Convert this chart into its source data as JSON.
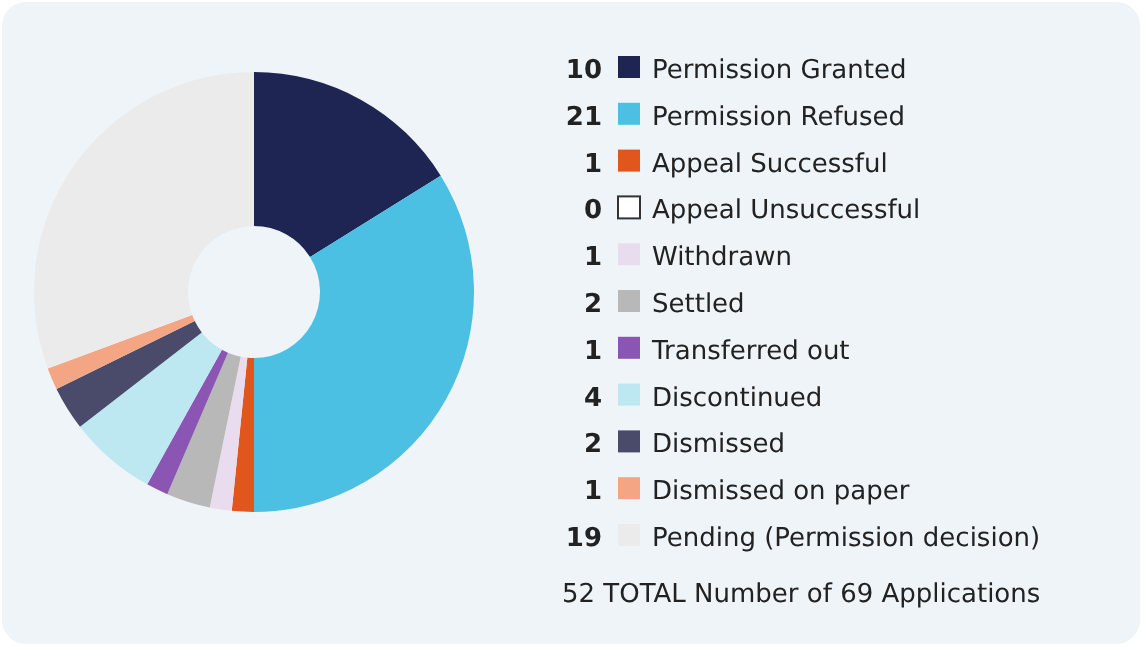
{
  "chart_data": {
    "type": "donut",
    "categories": [
      "Permission Granted",
      "Permission Refused",
      "Appeal Successful",
      "Appeal Unsuccessful",
      "Withdrawn",
      "Settled",
      "Transferred out",
      "Discontinued",
      "Dismissed",
      "Dismissed on paper",
      "Pending (Permission decision)"
    ],
    "values": [
      10,
      21,
      1,
      0,
      1,
      2,
      1,
      4,
      2,
      1,
      19
    ],
    "colors": [
      "#1f2552",
      "#4cc0e2",
      "#e0561c",
      "#ffffff",
      "#e9dcef",
      "#b8b8b8",
      "#8b55b3",
      "#bde8f1",
      "#4a4b6b",
      "#f4a583",
      "#ebebeb"
    ],
    "value_labels": [
      "10",
      "21",
      "1",
      "0",
      "1",
      "2",
      "1",
      "4",
      "2",
      "1",
      "19"
    ],
    "legend": "right",
    "annotations": [
      "52 TOTAL Number of 69 Applications"
    ]
  }
}
